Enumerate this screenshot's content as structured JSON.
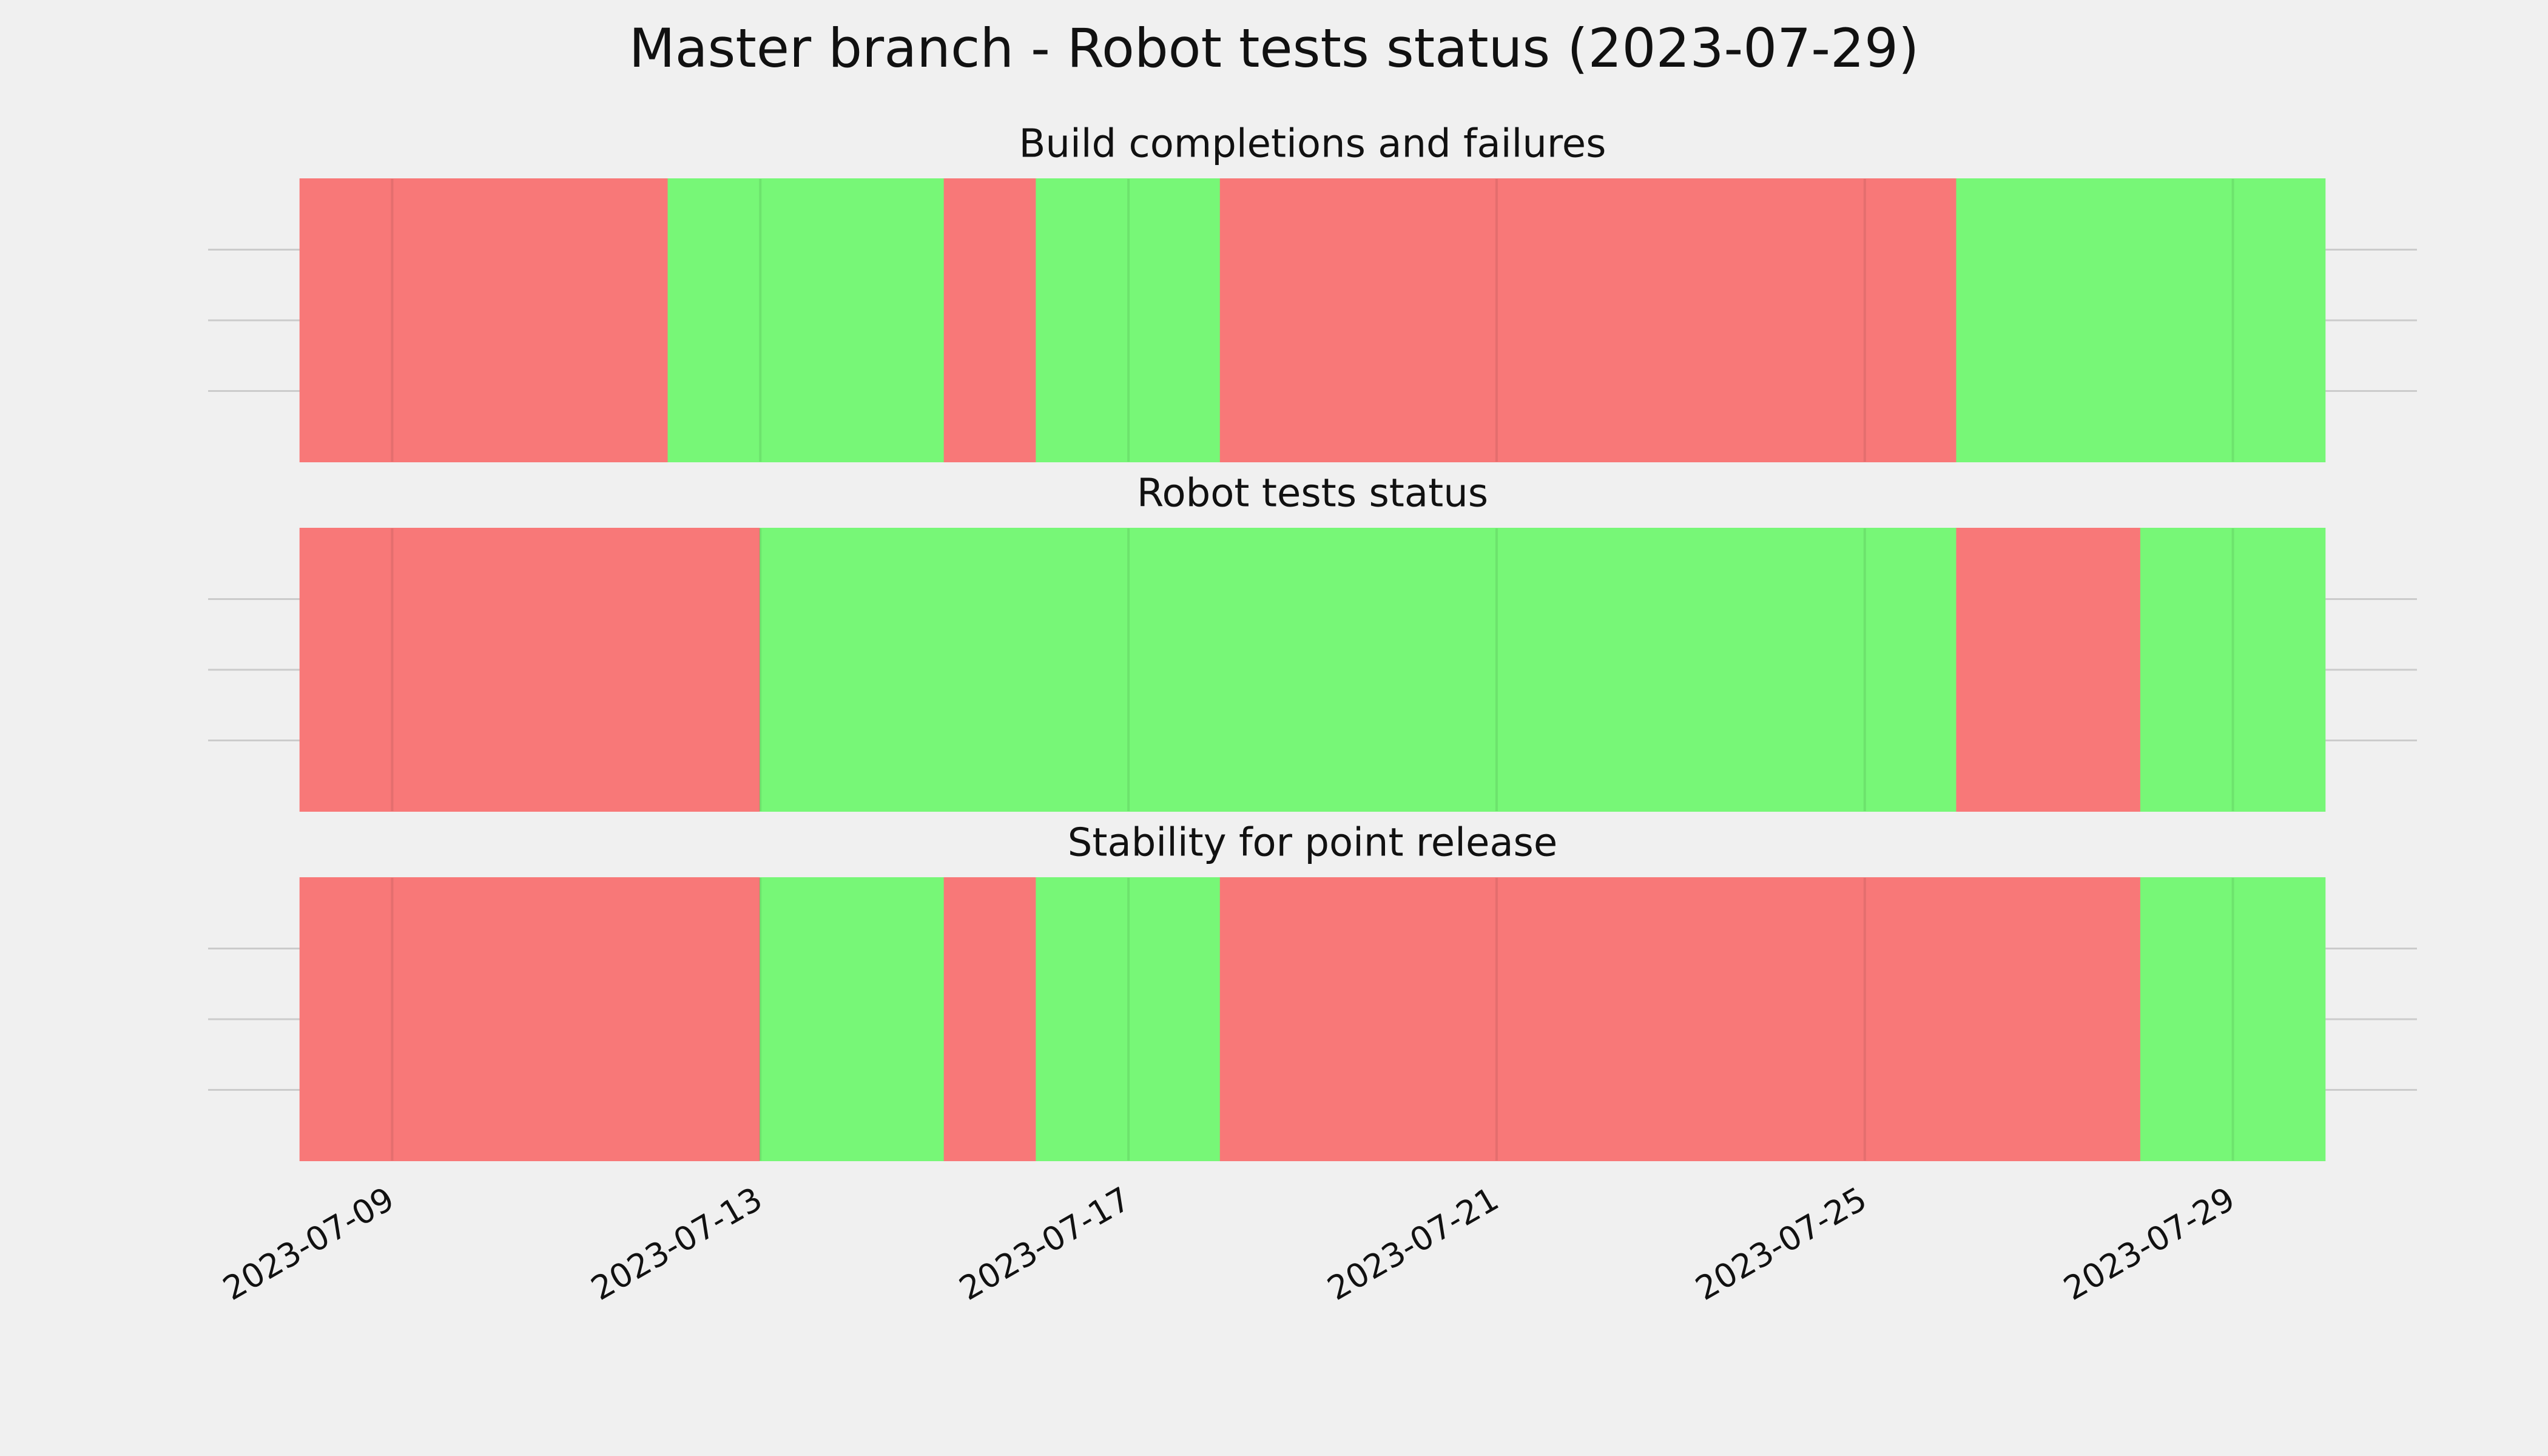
{
  "title": "Master branch - Robot tests status (2023-07-29)",
  "chart_data": [
    {
      "type": "timeline",
      "title": "Build completions and failures",
      "xlim": [
        "2023-07-07",
        "2023-07-31"
      ],
      "xticks": [
        "2023-07-09",
        "2023-07-13",
        "2023-07-17",
        "2023-07-21",
        "2023-07-25",
        "2023-07-29"
      ],
      "ylim": [
        0,
        1
      ],
      "yticks": [
        0.25,
        0.5,
        0.75
      ],
      "spans": [
        {
          "start": "2023-07-08",
          "end": "2023-07-12",
          "color": "#f87878"
        },
        {
          "start": "2023-07-12",
          "end": "2023-07-15",
          "color": "#77f777"
        },
        {
          "start": "2023-07-15",
          "end": "2023-07-16",
          "color": "#f87878"
        },
        {
          "start": "2023-07-16",
          "end": "2023-07-18",
          "color": "#77f777"
        },
        {
          "start": "2023-07-18",
          "end": "2023-07-26",
          "color": "#f87878"
        },
        {
          "start": "2023-07-26",
          "end": "2023-07-30",
          "color": "#77f777"
        }
      ]
    },
    {
      "type": "timeline",
      "title": "Robot tests status",
      "xlim": [
        "2023-07-07",
        "2023-07-31"
      ],
      "xticks": [
        "2023-07-09",
        "2023-07-13",
        "2023-07-17",
        "2023-07-21",
        "2023-07-25",
        "2023-07-29"
      ],
      "ylim": [
        0,
        1
      ],
      "yticks": [
        0.25,
        0.5,
        0.75
      ],
      "spans": [
        {
          "start": "2023-07-08",
          "end": "2023-07-13",
          "color": "#f87878"
        },
        {
          "start": "2023-07-13",
          "end": "2023-07-26",
          "color": "#77f777"
        },
        {
          "start": "2023-07-26",
          "end": "2023-07-28",
          "color": "#f87878"
        },
        {
          "start": "2023-07-28",
          "end": "2023-07-30",
          "color": "#77f777"
        }
      ]
    },
    {
      "type": "timeline",
      "title": "Stability for point release",
      "xlim": [
        "2023-07-07",
        "2023-07-31"
      ],
      "xticks": [
        "2023-07-09",
        "2023-07-13",
        "2023-07-17",
        "2023-07-21",
        "2023-07-25",
        "2023-07-29"
      ],
      "ylim": [
        0,
        1
      ],
      "yticks": [
        0.25,
        0.5,
        0.75
      ],
      "spans": [
        {
          "start": "2023-07-08",
          "end": "2023-07-13",
          "color": "#f87878"
        },
        {
          "start": "2023-07-13",
          "end": "2023-07-15",
          "color": "#77f777"
        },
        {
          "start": "2023-07-15",
          "end": "2023-07-16",
          "color": "#f87878"
        },
        {
          "start": "2023-07-16",
          "end": "2023-07-18",
          "color": "#77f777"
        },
        {
          "start": "2023-07-18",
          "end": "2023-07-28",
          "color": "#f87878"
        },
        {
          "start": "2023-07-28",
          "end": "2023-07-30",
          "color": "#77f777"
        }
      ]
    }
  ]
}
